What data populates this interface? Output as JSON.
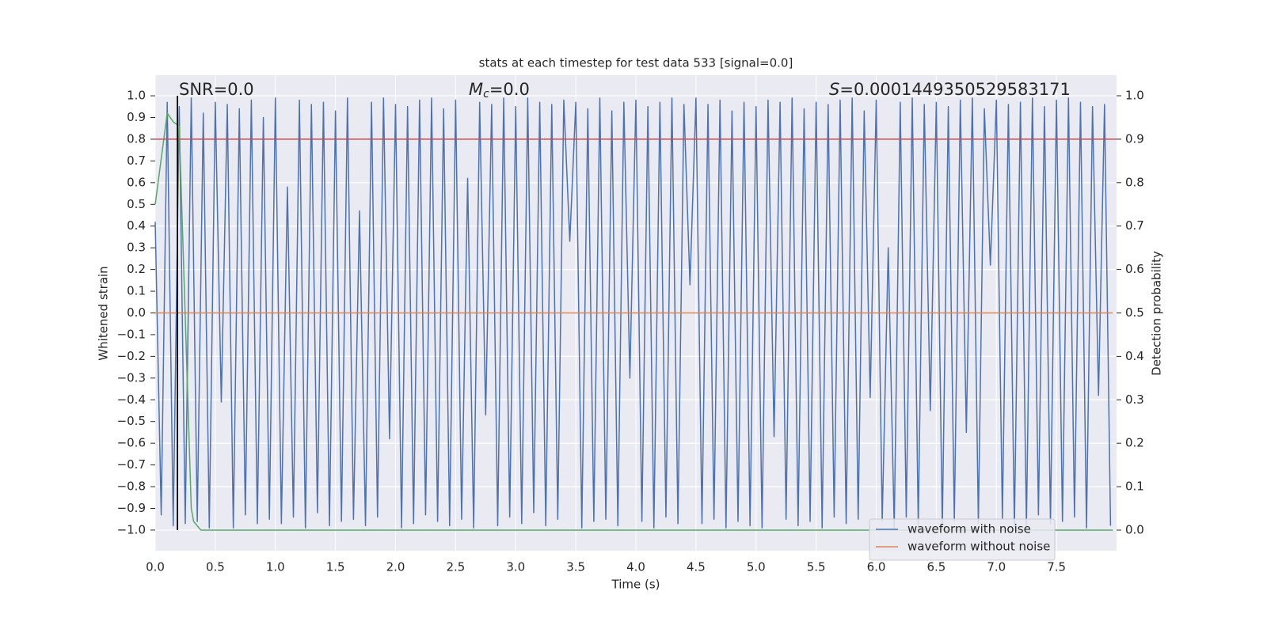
{
  "chart_data": {
    "type": "line",
    "title": "stats at each timestep for test data 533 [signal=0.0]",
    "xlabel": "Time (s)",
    "ylabel": "Whitened strain",
    "y2label": "Detection probability",
    "annotations": [
      [
        {
          "text": "SNR=0.0"
        }
      ],
      [
        {
          "text": "M",
          "style": "italic"
        },
        {
          "text": "c",
          "style": "sub"
        },
        {
          "text": "=0.0"
        }
      ],
      [
        {
          "text": "S",
          "style": "italic"
        },
        {
          "text": "=0.0001449350529583171"
        }
      ]
    ],
    "xlim": [
      0,
      8.0
    ],
    "ylim": [
      -1.095,
      1.095
    ],
    "y2lim": [
      -0.0474,
      1.0474
    ],
    "xticks": [
      {
        "value": 0,
        "label": "0.0"
      },
      0.5,
      {
        "value": 1,
        "label": "1.0"
      },
      1.5,
      {
        "value": 2,
        "label": "2.0"
      },
      2.5,
      {
        "value": 3,
        "label": "3.0"
      },
      3.5,
      {
        "value": 4,
        "label": "4.0"
      },
      4.5,
      {
        "value": 5,
        "label": "5.0"
      },
      5.5,
      {
        "value": 6,
        "label": "6.0"
      },
      6.5,
      {
        "value": 7,
        "label": "7.0"
      },
      7.5
    ],
    "yticks": [
      {
        "value": -1,
        "label": "−1.0"
      },
      {
        "value": -0.9,
        "label": "−0.9"
      },
      {
        "value": -0.8,
        "label": "−0.8"
      },
      {
        "value": -0.7,
        "label": "−0.7"
      },
      {
        "value": -0.6,
        "label": "−0.6"
      },
      {
        "value": -0.5,
        "label": "−0.5"
      },
      {
        "value": -0.4,
        "label": "−0.4"
      },
      {
        "value": -0.3,
        "label": "−0.3"
      },
      {
        "value": -0.2,
        "label": "−0.2"
      },
      {
        "value": -0.1,
        "label": "−0.1"
      },
      {
        "value": 0,
        "label": "0.0"
      },
      0.1,
      0.2,
      0.3,
      0.4,
      0.5,
      0.6,
      0.7,
      0.8,
      0.9,
      {
        "value": 1,
        "label": "1.0"
      }
    ],
    "y2ticks": [
      {
        "value": 0,
        "label": "0.0"
      },
      0.1,
      0.2,
      0.3,
      0.4,
      0.5,
      0.6,
      0.7,
      0.8,
      0.9,
      {
        "value": 1,
        "label": "1.0"
      }
    ],
    "grid": true,
    "legend": "lower right",
    "series": [
      {
        "name": "waveform with noise",
        "color": "#4c72b0",
        "x": [
          0,
          0.05,
          0.1,
          0.15,
          0.2,
          0.25,
          0.3,
          0.35,
          0.4,
          0.45,
          0.5,
          0.55,
          0.6,
          0.65,
          0.7,
          0.75,
          0.8,
          0.85,
          0.9,
          0.95,
          1,
          1.05,
          1.1,
          1.15,
          1.2,
          1.25,
          1.3,
          1.35,
          1.4,
          1.45,
          1.5,
          1.55,
          1.6,
          1.65,
          1.7,
          1.75,
          1.8,
          1.85,
          1.9,
          1.95,
          2,
          2.05,
          2.1,
          2.15,
          2.2,
          2.25,
          2.3,
          2.35,
          2.4,
          2.45,
          2.5,
          2.55,
          2.6,
          2.65,
          2.7,
          2.75,
          2.8,
          2.85,
          2.9,
          2.95,
          3,
          3.05,
          3.1,
          3.15,
          3.2,
          3.25,
          3.3,
          3.35,
          3.4,
          3.45,
          3.5,
          3.55,
          3.6,
          3.65,
          3.7,
          3.75,
          3.8,
          3.85,
          3.9,
          3.95,
          4,
          4.05,
          4.1,
          4.15,
          4.2,
          4.25,
          4.3,
          4.35,
          4.4,
          4.45,
          4.5,
          4.55,
          4.6,
          4.65,
          4.7,
          4.75,
          4.8,
          4.85,
          4.9,
          4.95,
          5,
          5.05,
          5.1,
          5.15,
          5.2,
          5.25,
          5.3,
          5.35,
          5.4,
          5.45,
          5.5,
          5.55,
          5.6,
          5.65,
          5.7,
          5.75,
          5.8,
          5.85,
          5.9,
          5.95,
          6,
          6.05,
          6.1,
          6.15,
          6.2,
          6.25,
          6.3,
          6.35,
          6.4,
          6.45,
          6.5,
          6.55,
          6.6,
          6.65,
          6.7,
          6.75,
          6.8,
          6.85,
          6.9,
          6.95,
          7,
          7.05,
          7.1,
          7.15,
          7.2,
          7.25,
          7.3,
          7.35,
          7.4,
          7.45,
          7.5,
          7.55,
          7.6,
          7.65,
          7.7,
          7.75,
          7.8,
          7.85,
          7.9,
          7.95
        ],
        "values": [
          0.42,
          -0.93,
          0.97,
          -0.98,
          0.95,
          -0.97,
          0.99,
          -0.96,
          0.92,
          -0.99,
          0.97,
          -0.41,
          0.96,
          -0.99,
          0.94,
          -0.93,
          0.98,
          -0.97,
          0.9,
          -0.95,
          0.99,
          -0.97,
          0.58,
          -0.94,
          0.98,
          -0.99,
          0.96,
          -0.92,
          0.97,
          -0.98,
          0.93,
          -0.96,
          0.99,
          -0.95,
          0.47,
          -0.98,
          0.97,
          -0.94,
          0.99,
          -0.58,
          0.96,
          -0.99,
          0.95,
          -0.97,
          0.98,
          -0.93,
          0.99,
          -0.96,
          0.94,
          -0.98,
          0.98,
          -0.95,
          0.62,
          -0.99,
          0.97,
          -0.47,
          0.96,
          -0.98,
          0.99,
          -0.94,
          0.95,
          -0.97,
          0.99,
          -0.92,
          0.97,
          -0.98,
          0.96,
          -0.95,
          0.98,
          0.33,
          0.97,
          -0.99,
          0.94,
          -0.96,
          0.99,
          -0.95,
          0.93,
          -0.98,
          0.97,
          -0.3,
          0.98,
          -0.96,
          0.95,
          -0.99,
          0.97,
          -0.94,
          0.99,
          -0.97,
          0.96,
          0.13,
          0.99,
          -0.97,
          0.96,
          -0.95,
          0.98,
          -0.99,
          0.93,
          -0.96,
          0.97,
          -0.98,
          0.95,
          -0.99,
          0.98,
          -0.57,
          0.97,
          -0.95,
          0.99,
          -0.98,
          0.94,
          -0.96,
          0.97,
          -0.99,
          0.96,
          -0.94,
          0.98,
          -0.97,
          0.99,
          -0.95,
          0.93,
          -0.39,
          0.98,
          -0.96,
          0.3,
          -0.99,
          0.97,
          -0.94,
          0.99,
          -0.98,
          0.96,
          -0.45,
          0.97,
          -0.99,
          0.95,
          -0.96,
          0.98,
          -0.55,
          0.99,
          -0.97,
          0.94,
          0.22,
          0.98,
          -0.95,
          0.96,
          -0.99,
          0.97,
          -0.98,
          0.99,
          -0.93,
          0.95,
          -0.97,
          0.98,
          -0.96,
          0.99,
          -0.94,
          0.97,
          -0.99,
          0.95,
          -0.38,
          0.96,
          -0.98
        ]
      },
      {
        "name": "waveform without noise",
        "color": "#dd8452",
        "x": [
          0,
          7.97
        ],
        "values": [
          0,
          0
        ]
      },
      {
        "color": "#55a868",
        "axis": "y2",
        "x": [
          0,
          0.1,
          0.15,
          0.2,
          0.3,
          0.32,
          0.38,
          7.97
        ],
        "values": [
          0.75,
          0.96,
          0.94,
          0.93,
          0.05,
          0.02,
          0,
          0
        ]
      }
    ],
    "hlines": [
      {
        "value": 0.9,
        "axis": "y2",
        "color": "#c44e52"
      }
    ],
    "vlines": [
      {
        "value": 0.185,
        "ymin": -1,
        "ymax": 1,
        "color": "#000000"
      }
    ]
  }
}
